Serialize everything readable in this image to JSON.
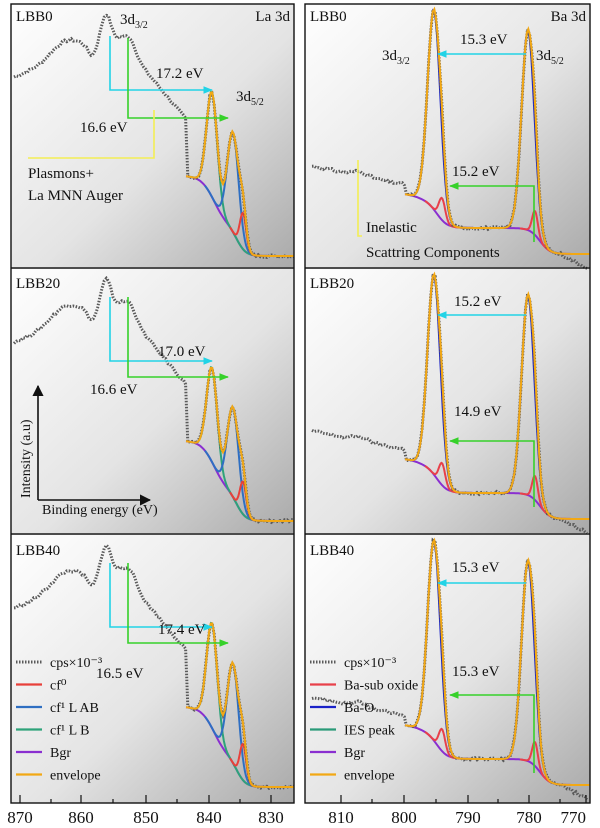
{
  "figure": {
    "left_element": "La 3d",
    "right_element": "Ba 3d",
    "x_ticks_left": [
      "870",
      "860",
      "850",
      "840",
      "830"
    ],
    "x_ticks_right": [
      "810",
      "800",
      "790",
      "780",
      "770"
    ],
    "inset_y_label": "Intensity (a.u)",
    "inset_x_label": "Binding energy (eV)"
  },
  "legend_left": [
    "cps×10⁻³",
    "cf⁰",
    "cf¹ L AB",
    "cf¹ L B",
    "Bgr",
    "envelope"
  ],
  "legend_right": [
    "cps×10⁻³",
    "Ba-sub oxide",
    "Ba-O",
    "IES peak",
    "Bgr",
    "envelope"
  ],
  "colors": {
    "data": "#6a6a6a",
    "cf0": "#e8403a",
    "cf1_ab": "#2f6fc2",
    "cf1_b": "#2ea37a",
    "bgr": "#8a2fd0",
    "envelope": "#f2a814",
    "ba_sub": "#e8404a",
    "ba_o": "#1a22c8",
    "ies": "#2a9a78",
    "cyan": "#22d3e6",
    "green": "#36d12a",
    "yellow": "#f3ee55"
  },
  "chart_data": [
    {
      "type": "line",
      "panel": "LBB0",
      "core_level": "La 3d",
      "xlabel": "Binding energy (eV)",
      "ylabel": "Intensity (a.u)",
      "xlim": [
        870,
        825
      ],
      "peak_labels": {
        "p32": "3d",
        "p52": "3d",
        "sub32": "3/2",
        "sub52": "5/2"
      },
      "annotations": [
        "17.2 eV",
        "16.6 eV",
        "Plasmons+",
        "La MNN Auger"
      ],
      "peak_energy": 836.5,
      "series": [
        "cps×10⁻³",
        "cf⁰",
        "cf¹ L AB",
        "cf¹ L B",
        "Bgr",
        "envelope"
      ]
    },
    {
      "type": "line",
      "panel": "LBB20",
      "core_level": "La 3d",
      "xlim": [
        870,
        825
      ],
      "annotations": [
        "17.0 eV",
        "16.6 eV"
      ],
      "peak_energy": 836.5,
      "series": [
        "cps×10⁻³",
        "cf⁰",
        "cf¹ L AB",
        "cf¹ L B",
        "Bgr",
        "envelope"
      ]
    },
    {
      "type": "line",
      "panel": "LBB40",
      "core_level": "La 3d",
      "xlim": [
        870,
        825
      ],
      "annotations": [
        "17.4 eV",
        "16.5 eV"
      ],
      "peak_energy": 836.5,
      "series": [
        "cps×10⁻³",
        "cf⁰",
        "cf¹ L AB",
        "cf¹ L B",
        "Bgr",
        "envelope"
      ]
    },
    {
      "type": "line",
      "panel": "LBB0",
      "core_level": "Ba 3d",
      "xlim": [
        815,
        770
      ],
      "peak_labels": {
        "p32": "3d",
        "p52": "3d",
        "sub32": "3/2",
        "sub52": "5/2"
      },
      "annotations": [
        "15.3 eV",
        "15.2 eV",
        "Inelastic",
        "Scattring Components"
      ],
      "peaks": {
        "3d3/2": 794.3,
        "3d5/2": 779.0
      },
      "series": [
        "cps×10⁻³",
        "Ba-sub oxide",
        "Ba-O",
        "IES peak",
        "Bgr",
        "envelope"
      ]
    },
    {
      "type": "line",
      "panel": "LBB20",
      "core_level": "Ba 3d",
      "xlim": [
        815,
        770
      ],
      "annotations": [
        "15.2 eV",
        "14.9 eV"
      ],
      "peaks": {
        "3d3/2": 794.3,
        "3d5/2": 779.0
      },
      "series": [
        "cps×10⁻³",
        "Ba-sub oxide",
        "Ba-O",
        "IES peak",
        "Bgr",
        "envelope"
      ]
    },
    {
      "type": "line",
      "panel": "LBB40",
      "core_level": "Ba 3d",
      "xlim": [
        815,
        770
      ],
      "annotations": [
        "15.3 eV",
        "15.3 eV"
      ],
      "peaks": {
        "3d3/2": 794.3,
        "3d5/2": 779.0
      },
      "series": [
        "cps×10⁻³",
        "Ba-sub oxide",
        "Ba-O",
        "IES peak",
        "Bgr",
        "envelope"
      ]
    }
  ]
}
